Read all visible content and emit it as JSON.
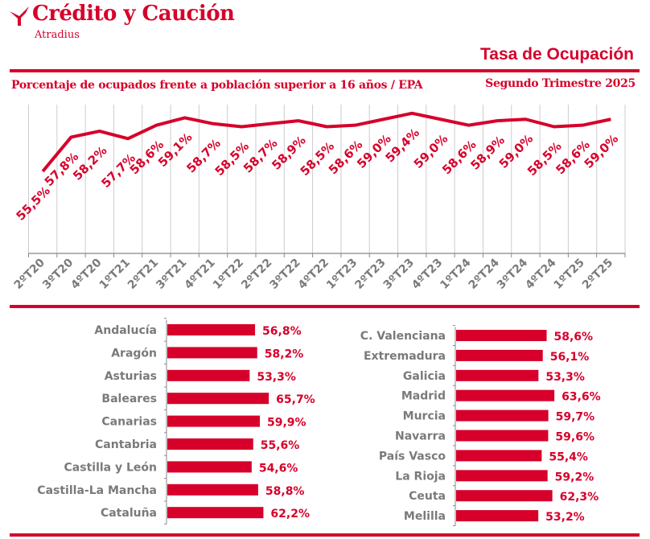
{
  "header": {
    "logo_name": "Crédito y Caución",
    "logo_sub": "Atradius",
    "title": "Tasa de Ocupación",
    "subtitle": "Porcentaje de ocupados frente a población superior a 16 años / EPA",
    "period": "Segundo Trimestre 2025"
  },
  "colors": {
    "accent": "#d6002a",
    "label_grey": "#7a7a7a",
    "grid": "#cccccc"
  },
  "chart_data": [
    {
      "type": "line",
      "categories": [
        "2ºT20",
        "3ºT20",
        "4ºT20",
        "1ºT21",
        "2ºT21",
        "3ºT21",
        "4ºT21",
        "1ºT22",
        "2ºT22",
        "3ºT22",
        "4ºT22",
        "1ºT23",
        "2ºT23",
        "3ºT23",
        "4ºT23",
        "1ºT24",
        "2ºT24",
        "3ºT24",
        "4ºT24",
        "1ºT25",
        "2ºT25"
      ],
      "values": [
        55.5,
        57.8,
        58.2,
        57.7,
        58.6,
        59.1,
        58.7,
        58.5,
        58.7,
        58.9,
        58.5,
        58.6,
        59.0,
        59.4,
        59.0,
        58.6,
        58.9,
        59.0,
        58.5,
        58.6,
        59.0
      ],
      "labels": [
        "55,5%",
        "57,8%",
        "58,2%",
        "57,7%",
        "58,6%",
        "59,1%",
        "58,7%",
        "58,5%",
        "58,7%",
        "58,9%",
        "58,5%",
        "58,6%",
        "59,0%",
        "59,4%",
        "59,0%",
        "58,6%",
        "58,9%",
        "59,0%",
        "58,5%",
        "58,6%",
        "59,0%"
      ],
      "grid": "vertical"
    },
    {
      "type": "bar",
      "orientation": "horizontal",
      "categories": [
        "Andalucía",
        "Aragón",
        "Asturias",
        "Baleares",
        "Canarias",
        "Cantabria",
        "Castilla y León",
        "Castilla-La Mancha",
        "Cataluña"
      ],
      "values": [
        56.8,
        58.2,
        53.3,
        65.7,
        59.9,
        55.6,
        54.6,
        58.8,
        62.2
      ],
      "labels": [
        "56,8%",
        "58,2%",
        "53,3%",
        "65,7%",
        "59,9%",
        "55,6%",
        "54,6%",
        "58,8%",
        "62,2%"
      ]
    },
    {
      "type": "bar",
      "orientation": "horizontal",
      "categories": [
        "C. Valenciana",
        "Extremadura",
        "Galicia",
        "Madrid",
        "Murcia",
        "Navarra",
        "País Vasco",
        "La Rioja",
        "Ceuta",
        "Melilla"
      ],
      "values": [
        58.6,
        56.1,
        53.3,
        63.6,
        59.7,
        59.6,
        55.4,
        59.2,
        62.3,
        53.2
      ],
      "labels": [
        "58,6%",
        "56,1%",
        "53,3%",
        "63,6%",
        "59,7%",
        "59,6%",
        "55,4%",
        "59,2%",
        "62,3%",
        "53,2%"
      ]
    }
  ]
}
